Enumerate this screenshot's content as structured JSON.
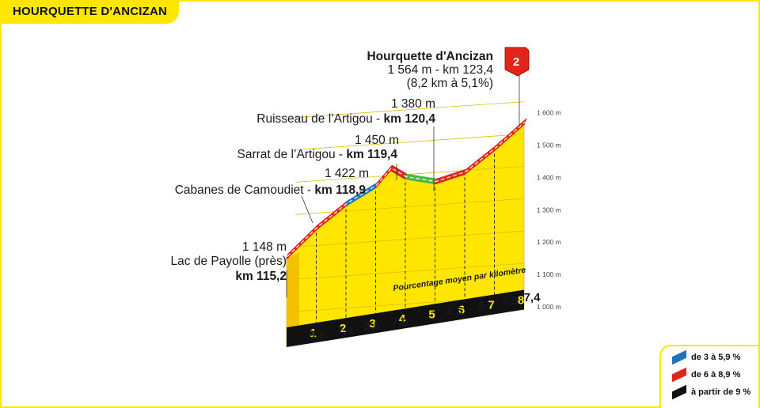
{
  "header": {
    "title": "HOURQUETTE D'ANCIZAN"
  },
  "colors": {
    "yellow": "#ffe600",
    "blue": "#1e73be",
    "red": "#e1251b",
    "green": "#4cb848",
    "black": "#111111",
    "grid": "#999999"
  },
  "chart_data": {
    "type": "area",
    "subtitle": "Pourcentage moyen par kilomètre",
    "ylim": [
      950,
      1600
    ],
    "y_ticks": [
      "1 000 m",
      "1 100 m",
      "1 200 m",
      "1 300 m",
      "1 400 m",
      "1 500 m",
      "1 600 m"
    ],
    "y_tick_values": [
      1000,
      1100,
      1200,
      1300,
      1400,
      1500,
      1600
    ],
    "km_markers": [
      "1",
      "2",
      "3",
      "4",
      "5",
      "6",
      "7",
      "8"
    ],
    "gradients": [
      "8,8",
      "7,4",
      "5,6",
      "7,9",
      "2,5",
      "6",
      "7,3",
      "7,4"
    ],
    "profile": [
      {
        "km": 0,
        "elev": 1148
      },
      {
        "km": 1,
        "elev": 1238
      },
      {
        "km": 2,
        "elev": 1312
      },
      {
        "km": 3,
        "elev": 1368
      },
      {
        "km": 3.5,
        "elev": 1422
      },
      {
        "km": 4,
        "elev": 1395
      },
      {
        "km": 5,
        "elev": 1380
      },
      {
        "km": 6,
        "elev": 1410
      },
      {
        "km": 7,
        "elev": 1483
      },
      {
        "km": 8,
        "elev": 1564
      }
    ],
    "segments": [
      {
        "from": 0,
        "to": 2,
        "color": "red"
      },
      {
        "from": 2,
        "to": 3,
        "color": "blue"
      },
      {
        "from": 3,
        "to": 4,
        "color": "red"
      },
      {
        "from": 4,
        "to": 5,
        "color": "green"
      },
      {
        "from": 5,
        "to": 8,
        "color": "red"
      }
    ],
    "annotations": [
      {
        "elev": "1 148 m",
        "name": "Lac de Payolle (près)",
        "km": "km 115,2"
      },
      {
        "elev": "1 422 m",
        "name": "Cabanes de Camoudiet - ",
        "km": "km 118,9"
      },
      {
        "elev": "1 450 m",
        "name": "Sarrat de l’Artigou - ",
        "km": "km 119,4"
      },
      {
        "elev": "1 380 m",
        "name": "Ruisseau de l’Artigou - ",
        "km": "km 120,4"
      }
    ],
    "summit": {
      "name": "Hourquette d'Ancizan",
      "line1": "1 564 m - km 123,4",
      "line2": "(8,2 km à 5,1%)",
      "category": "2"
    }
  },
  "legend": {
    "items": [
      {
        "label": "de 3 à 5,9 %",
        "color": "#1e73be"
      },
      {
        "label": "de 6 à 8,9 %",
        "color": "#e1251b"
      },
      {
        "label": "à partir de 9 %",
        "color": "#111111"
      }
    ]
  }
}
